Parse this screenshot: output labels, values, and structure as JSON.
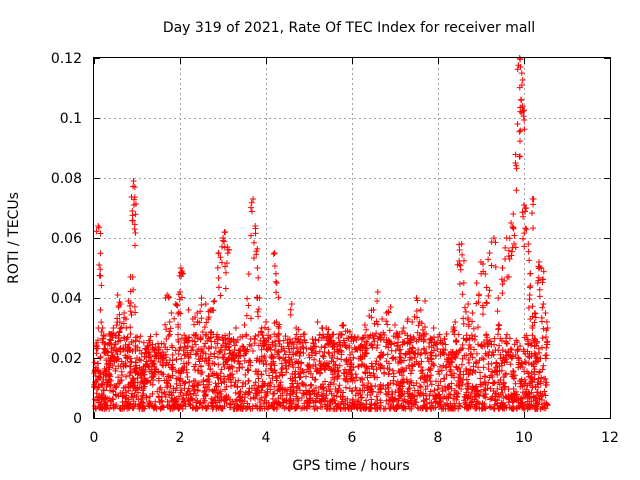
{
  "chart_data": {
    "type": "scatter",
    "title": "Day 319 of 2021, Rate Of TEC Index for receiver mall",
    "xlabel": "GPS time / hours",
    "ylabel": "ROTI / TECUs",
    "xlim": [
      0,
      12
    ],
    "ylim": [
      0,
      0.12
    ],
    "x_ticks": [
      0,
      2,
      4,
      6,
      8,
      10,
      12
    ],
    "x_tick_labels": [
      "0",
      "2",
      "4",
      "6",
      "8",
      "10",
      "12"
    ],
    "y_ticks": [
      0,
      0.02,
      0.04,
      0.06,
      0.08,
      0.1,
      0.12
    ],
    "y_tick_labels": [
      "0",
      "0.02",
      "0.04",
      "0.06",
      "0.08",
      "0.1",
      "0.12"
    ],
    "grid": true,
    "marker": "+",
    "color": "#ff0000",
    "series": [
      {
        "name": "ROTI",
        "x": [
          0.0,
          0.05,
          0.1,
          0.12,
          0.15,
          0.2,
          0.25,
          0.3,
          0.35,
          0.4,
          0.45,
          0.5,
          0.55,
          0.6,
          0.62,
          0.7,
          0.75,
          0.8,
          0.85,
          0.9,
          0.92,
          0.93,
          0.95,
          1.0,
          1.05,
          1.1,
          1.15,
          1.2,
          1.3,
          1.4,
          1.5,
          1.6,
          1.7,
          1.8,
          1.9,
          2.0,
          2.02,
          2.05,
          2.1,
          2.2,
          2.3,
          2.4,
          2.5,
          2.6,
          2.7,
          2.8,
          2.9,
          3.0,
          3.05,
          3.1,
          3.15,
          3.2,
          3.3,
          3.4,
          3.5,
          3.6,
          3.7,
          3.75,
          3.8,
          3.85,
          3.9,
          4.0,
          4.1,
          4.2,
          4.25,
          4.3,
          4.4,
          4.5,
          4.6,
          4.7,
          4.8,
          4.9,
          5.0,
          5.1,
          5.2,
          5.3,
          5.4,
          5.5,
          5.6,
          5.7,
          5.8,
          5.9,
          6.0,
          6.1,
          6.2,
          6.3,
          6.4,
          6.5,
          6.6,
          6.7,
          6.8,
          6.9,
          7.0,
          7.1,
          7.2,
          7.3,
          7.4,
          7.5,
          7.6,
          7.7,
          7.8,
          7.9,
          8.0,
          8.1,
          8.2,
          8.3,
          8.4,
          8.5,
          8.55,
          8.6,
          8.7,
          8.8,
          8.9,
          9.0,
          9.1,
          9.2,
          9.3,
          9.4,
          9.5,
          9.6,
          9.7,
          9.75,
          9.8,
          9.85,
          9.9,
          9.92,
          9.95,
          9.97,
          10.0,
          10.05,
          10.1,
          10.15,
          10.2,
          10.25,
          10.3,
          10.35,
          10.4,
          10.45,
          10.5,
          10.55
        ],
        "y": [
          0.015,
          0.025,
          0.064,
          0.051,
          0.036,
          0.03,
          0.022,
          0.018,
          0.028,
          0.02,
          0.03,
          0.025,
          0.041,
          0.032,
          0.038,
          0.035,
          0.03,
          0.039,
          0.028,
          0.047,
          0.079,
          0.071,
          0.077,
          0.02,
          0.015,
          0.014,
          0.017,
          0.018,
          0.021,
          0.019,
          0.023,
          0.022,
          0.041,
          0.035,
          0.038,
          0.042,
          0.05,
          0.049,
          0.025,
          0.036,
          0.033,
          0.035,
          0.04,
          0.038,
          0.036,
          0.039,
          0.055,
          0.06,
          0.062,
          0.057,
          0.028,
          0.026,
          0.03,
          0.027,
          0.031,
          0.048,
          0.073,
          0.064,
          0.05,
          0.04,
          0.03,
          0.032,
          0.027,
          0.055,
          0.045,
          0.03,
          0.02,
          0.025,
          0.038,
          0.03,
          0.022,
          0.028,
          0.021,
          0.025,
          0.032,
          0.03,
          0.03,
          0.027,
          0.025,
          0.028,
          0.031,
          0.029,
          0.022,
          0.026,
          0.024,
          0.031,
          0.034,
          0.036,
          0.042,
          0.033,
          0.035,
          0.037,
          0.031,
          0.028,
          0.03,
          0.033,
          0.032,
          0.04,
          0.036,
          0.039,
          0.025,
          0.03,
          0.027,
          0.025,
          0.028,
          0.022,
          0.032,
          0.056,
          0.058,
          0.045,
          0.038,
          0.035,
          0.045,
          0.052,
          0.048,
          0.055,
          0.06,
          0.04,
          0.05,
          0.06,
          0.065,
          0.068,
          0.085,
          0.098,
          0.12,
          0.117,
          0.111,
          0.104,
          0.071,
          0.07,
          0.058,
          0.044,
          0.073,
          0.035,
          0.025,
          0.052,
          0.05,
          0.038,
          0.035,
          0.03
        ],
        "baseline_band": {
          "x_range": [
            0.0,
            10.55
          ],
          "y_range": [
            0.003,
            0.028
          ]
        }
      }
    ]
  }
}
